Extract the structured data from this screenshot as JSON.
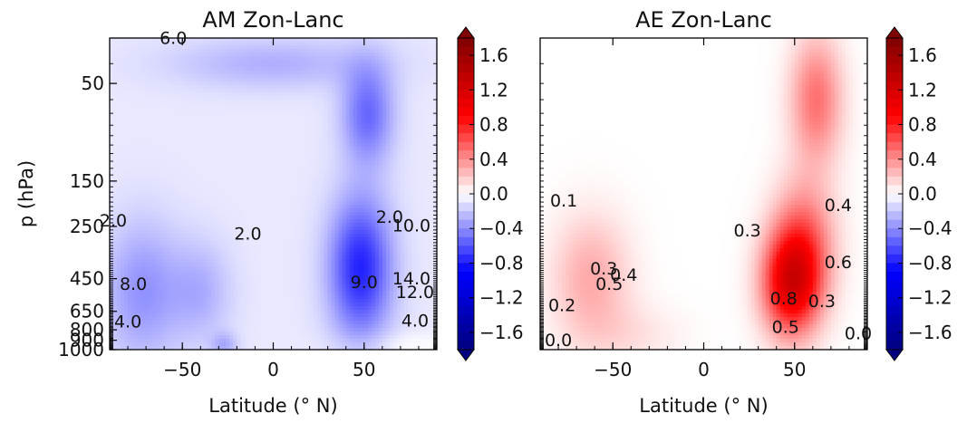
{
  "chart_data": [
    {
      "type": "heatmap",
      "title": "AM Zon-Lanc",
      "xlabel": "Latitude (° N)",
      "ylabel": "p (hPa)",
      "xlim": [
        -90,
        90
      ],
      "ylim": [
        1000,
        30
      ],
      "y_scale": "log",
      "x_ticks": [
        -50,
        0,
        50
      ],
      "x_tick_labels": [
        "−50",
        "0",
        "50"
      ],
      "y_ticks": [
        50,
        150,
        250,
        450,
        650,
        800,
        900,
        1000
      ],
      "y_tick_labels": [
        "50",
        "150",
        "250",
        "450",
        "650",
        "800",
        "900",
        "1000"
      ],
      "colormap": "seismic",
      "colorbar": {
        "min": -1.8,
        "max": 1.8,
        "extend": "both",
        "ticks": [
          1.6,
          1.2,
          0.8,
          0.4,
          0.0,
          -0.4,
          -0.8,
          -1.2,
          -1.6
        ],
        "tick_labels": [
          "1.6",
          "1.2",
          "0.8",
          "0.4",
          "0.0",
          "−0.4",
          "−0.8",
          "−1.2",
          "−1.6"
        ]
      },
      "shading": [
        {
          "lat": -72,
          "p": 520,
          "value": -0.3,
          "slat": 15,
          "sp": 0.55
        },
        {
          "lat": -40,
          "p": 520,
          "value": -0.2,
          "slat": 12,
          "sp": 0.4
        },
        {
          "lat": 0,
          "p": 40,
          "value": -0.2,
          "slat": 40,
          "sp": 0.2
        },
        {
          "lat": 48,
          "p": 400,
          "value": -0.7,
          "slat": 12,
          "sp": 0.55
        },
        {
          "lat": 52,
          "p": 70,
          "value": -0.45,
          "slat": 10,
          "sp": 0.4
        },
        {
          "lat": -27,
          "p": 950,
          "value": -0.2,
          "slat": 5,
          "sp": 0.1
        },
        {
          "lat": 70,
          "p": 950,
          "value": 0.08,
          "slat": 25,
          "sp": 0.1
        }
      ],
      "contour_labels": [
        {
          "text": "2.0",
          "lat": -14,
          "p": 290
        },
        {
          "text": "8.0",
          "lat": -77,
          "p": 510
        },
        {
          "text": "4.0",
          "lat": -80,
          "p": 780
        },
        {
          "text": "2.0",
          "lat": -88,
          "p": 250
        },
        {
          "text": "9.0",
          "lat": 50,
          "p": 500
        },
        {
          "text": "14.0",
          "lat": 76,
          "p": 480
        },
        {
          "text": "12.0",
          "lat": 78,
          "p": 560
        },
        {
          "text": "4.0",
          "lat": 78,
          "p": 770
        },
        {
          "text": "2.0",
          "lat": 64,
          "p": 240
        },
        {
          "text": "10.0",
          "lat": 76,
          "p": 265
        },
        {
          "text": "6.0",
          "lat": -55,
          "p": 32
        }
      ]
    },
    {
      "type": "heatmap",
      "title": "AE Zon-Lanc",
      "xlabel": "Latitude (° N)",
      "xlim": [
        -90,
        90
      ],
      "ylim": [
        1000,
        30
      ],
      "y_scale": "log",
      "x_ticks": [
        -50,
        0,
        50
      ],
      "x_tick_labels": [
        "−50",
        "0",
        "50"
      ],
      "colormap": "seismic",
      "colorbar": {
        "min": -1.8,
        "max": 1.8,
        "extend": "both",
        "ticks": [
          1.6,
          1.2,
          0.8,
          0.4,
          0.0,
          -0.4,
          -0.8,
          -1.2,
          -1.6
        ],
        "tick_labels": [
          "1.6",
          "1.2",
          "0.8",
          "0.4",
          "0.0",
          "−0.4",
          "−0.8",
          "−1.2",
          "−1.6"
        ]
      },
      "shading": [
        {
          "lat": -62,
          "p": 450,
          "value": 0.3,
          "slat": 15,
          "sp": 0.5
        },
        {
          "lat": 48,
          "p": 480,
          "value": 1.0,
          "slat": 11,
          "sp": 0.4
        },
        {
          "lat": 55,
          "p": 300,
          "value": 0.5,
          "slat": 12,
          "sp": 0.5
        },
        {
          "lat": 62,
          "p": 60,
          "value": 0.5,
          "slat": 10,
          "sp": 0.5
        },
        {
          "lat": -40,
          "p": 850,
          "value": 0.1,
          "slat": 20,
          "sp": 0.25
        }
      ],
      "contour_labels": [
        {
          "text": "0.1",
          "lat": -77,
          "p": 200
        },
        {
          "text": "0.3",
          "lat": -55,
          "p": 430
        },
        {
          "text": "0.4",
          "lat": -44,
          "p": 460
        },
        {
          "text": "0.5",
          "lat": -52,
          "p": 510
        },
        {
          "text": "0.2",
          "lat": -78,
          "p": 650
        },
        {
          "text": "0.0",
          "lat": -80,
          "p": 960
        },
        {
          "text": "0.8",
          "lat": 44,
          "p": 600
        },
        {
          "text": "0.3",
          "lat": 65,
          "p": 620
        },
        {
          "text": "0.5",
          "lat": 45,
          "p": 830
        },
        {
          "text": "0.6",
          "lat": 74,
          "p": 400
        },
        {
          "text": "0.4",
          "lat": 74,
          "p": 210
        },
        {
          "text": "0.3",
          "lat": 24,
          "p": 280
        },
        {
          "text": "0.0",
          "lat": 85,
          "p": 890
        }
      ]
    }
  ]
}
